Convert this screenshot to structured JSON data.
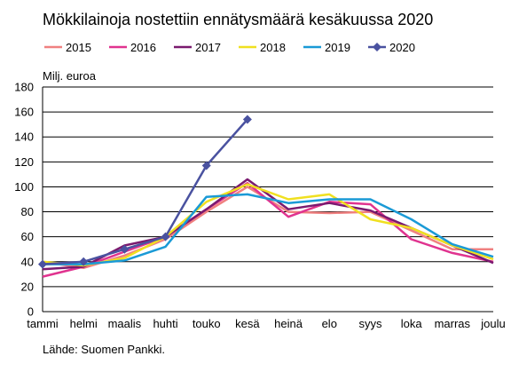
{
  "chart_data": {
    "type": "line",
    "title": "Mökkilainoja nostettiin ennätysmäärä kesäkuussa 2020",
    "ylabel": "Milj. euroa",
    "xlabel": "",
    "ylim": [
      0,
      180
    ],
    "yticks": [
      0,
      20,
      40,
      60,
      80,
      100,
      120,
      140,
      160,
      180
    ],
    "grid": true,
    "legend_position": "top",
    "categories": [
      "tammi",
      "helmi",
      "maalis",
      "huhti",
      "touko",
      "kesä",
      "heinä",
      "elo",
      "syys",
      "loka",
      "marras",
      "joulu"
    ],
    "series": [
      {
        "name": "2015",
        "color": "#f08080",
        "values": [
          40,
          35,
          45,
          58,
          80,
          100,
          80,
          79,
          80,
          65,
          50,
          50
        ]
      },
      {
        "name": "2016",
        "color": "#e0338f",
        "values": [
          28,
          36,
          48,
          60,
          82,
          103,
          76,
          88,
          86,
          58,
          47,
          40
        ]
      },
      {
        "name": "2017",
        "color": "#7a1a6f",
        "values": [
          34,
          36,
          53,
          60,
          82,
          106,
          82,
          87,
          81,
          67,
          53,
          39
        ]
      },
      {
        "name": "2018",
        "color": "#f0e020",
        "values": [
          40,
          37,
          43,
          60,
          88,
          102,
          90,
          94,
          74,
          67,
          53,
          42
        ]
      },
      {
        "name": "2019",
        "color": "#1a9ad6",
        "values": [
          38,
          38,
          41,
          52,
          92,
          94,
          87,
          90,
          90,
          74,
          54,
          44
        ]
      },
      {
        "name": "2020",
        "color": "#4a52a0",
        "marker": "diamond",
        "values": [
          38,
          40,
          50,
          60,
          117,
          154,
          null,
          null,
          null,
          null,
          null,
          null
        ]
      }
    ]
  },
  "source_note": "Lähde: Suomen Pankki."
}
